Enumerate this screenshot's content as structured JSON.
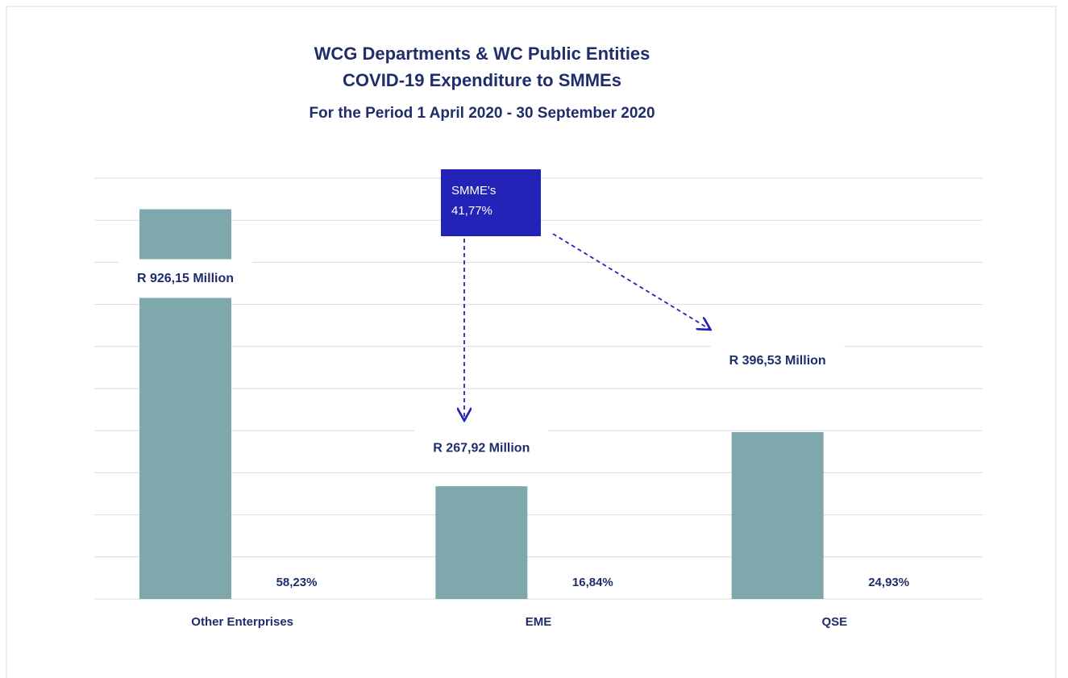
{
  "chart_data": {
    "type": "bar",
    "title": "WCG Departments & WC Public Entities",
    "subtitle": "COVID-19 Expenditure to SMMEs",
    "period": "For the Period 1 April 2020 - 30 September 2020",
    "categories": [
      "Other Enterprises",
      "EME",
      "QSE"
    ],
    "values": [
      926.15,
      267.92,
      396.53
    ],
    "value_labels": [
      "R 926,15 Million",
      "R 267,92 Million",
      "R 396,53 Million"
    ],
    "shares": [
      "58,23%",
      "16,84%",
      "24,93%"
    ],
    "annotation": [
      "SMME's",
      "41,77%"
    ],
    "color": "#7fa8ac",
    "ylim": [
      0,
      1000
    ],
    "yticks": [
      0,
      100,
      200,
      300,
      400,
      500,
      600,
      700,
      800,
      900,
      1000
    ],
    "grid": true
  }
}
